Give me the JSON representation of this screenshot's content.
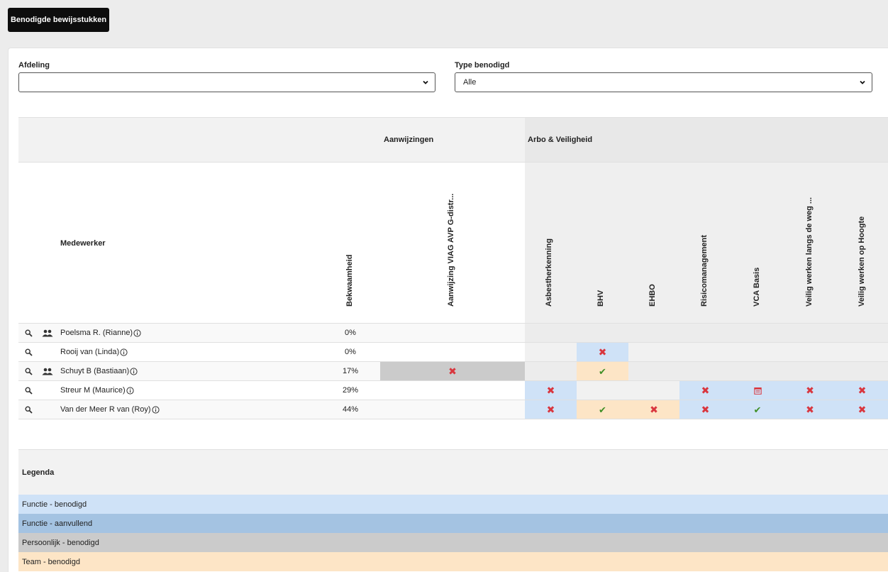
{
  "top_button": "Benodigde bewijsstukken",
  "filters": {
    "afdeling_label": "Afdeling",
    "afdeling_value": "",
    "type_label": "Type benodigd",
    "type_value": "Alle"
  },
  "groups": {
    "aanwijzingen": "Aanwijzingen",
    "arbo": "Arbo & Veiligheid"
  },
  "employee_header": "Medewerker",
  "columns": {
    "bekwaamheid": "Bekwaamheid",
    "aanwijzing": "Aanwijzing VIAG AVP G-distr...",
    "asbest": "Asbestherkenning",
    "bhv": "BHV",
    "ehbo": "EHBO",
    "risico": "Risicomanagement",
    "vca": "VCA Basis",
    "weg": "Veilig werken langs de weg ...",
    "hoogte": "Veilig werken op Hoogte"
  },
  "rows": [
    {
      "name": "Poelsma R. (Rianne)",
      "pct": "0%"
    },
    {
      "name": "Rooij van (Linda)",
      "pct": "0%"
    },
    {
      "name": "Schuyt B (Bastiaan)",
      "pct": "17%"
    },
    {
      "name": "Streur M (Maurice)",
      "pct": "29%"
    },
    {
      "name": "Van der Meer R van (Roy)",
      "pct": "44%"
    }
  ],
  "legend": {
    "title": "Legenda",
    "items": [
      "Functie - benodigd",
      "Functie - aanvullend",
      "Persoonlijk - benodigd",
      "Team - benodigd"
    ]
  },
  "colors": {
    "functie_benodigd": "#cfe2f7",
    "functie_aanvullend": "#a4c3e2",
    "persoonlijk_benodigd": "#cbcbcb",
    "team_benodigd": "#fde5c6",
    "status_missing": "#d9363e",
    "status_ok": "#3f8f26"
  },
  "icons": [
    "search-icon",
    "team-icon",
    "info-icon",
    "chevron-down-icon",
    "cross-icon",
    "check-icon",
    "calendar-icon"
  ]
}
